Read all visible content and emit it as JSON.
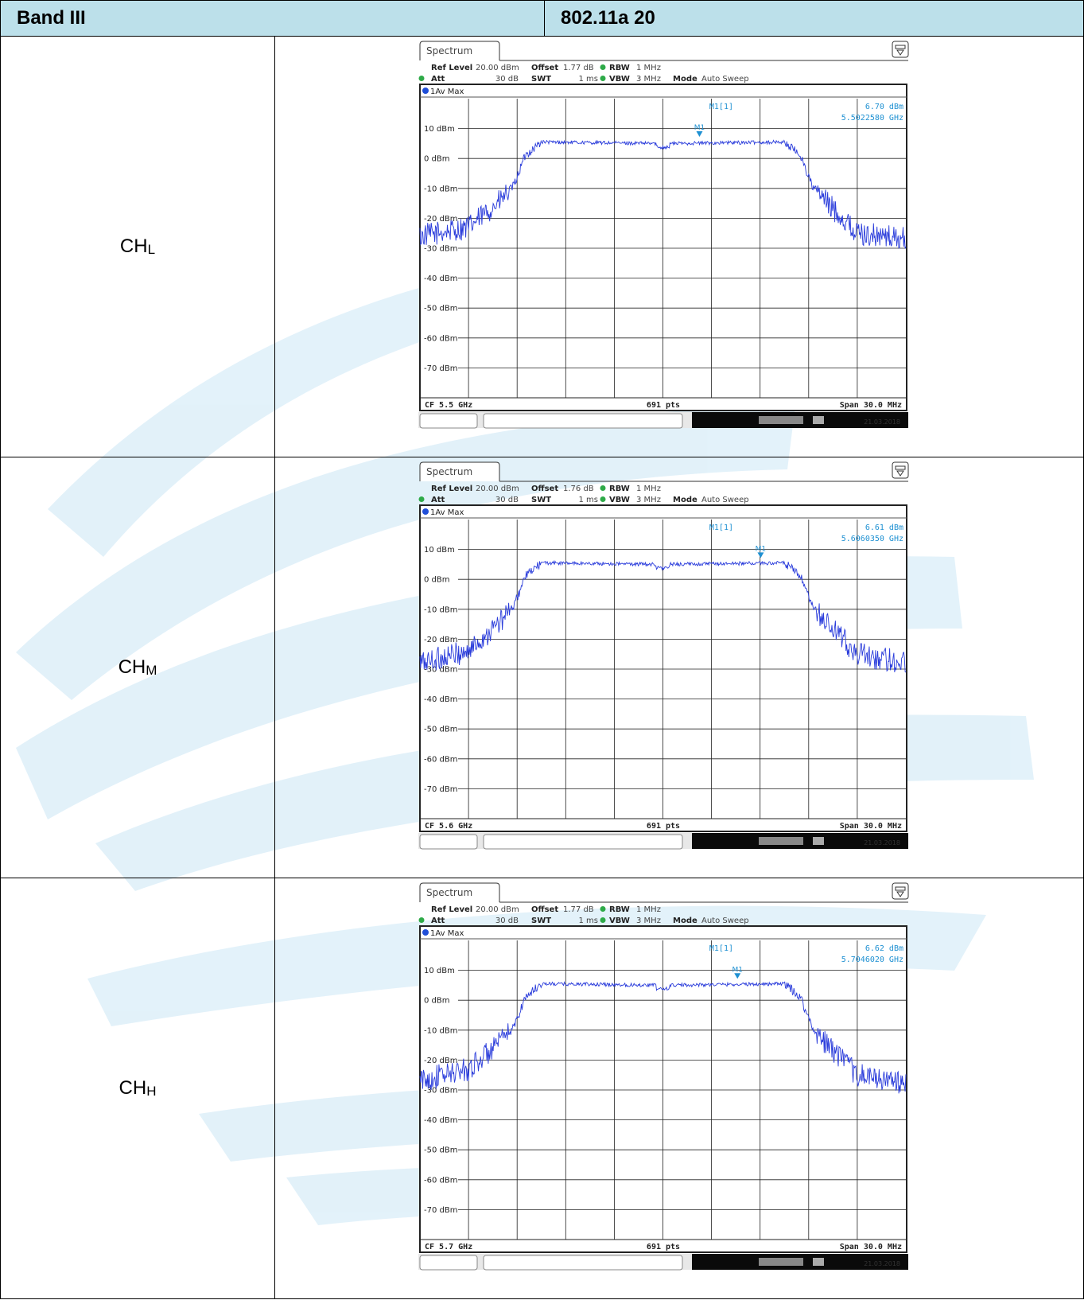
{
  "header": {
    "band": "Band III",
    "mode": "802.11a 20"
  },
  "colors": {
    "header_bg": "#b6dde8",
    "trace": "#2a3cdb",
    "marker": "#1e90d2",
    "watermark": "#d6ebf7"
  },
  "chart_data": [
    {
      "type": "line",
      "channel": "CH",
      "channel_sub": "L",
      "tab": "Spectrum",
      "ref_level_label": "Ref Level",
      "ref_level": "20.00 dBm",
      "att_label": "Att",
      "att": "30 dB",
      "offset_label": "Offset",
      "offset": "1.77 dB",
      "swt_label": "SWT",
      "swt": "1 ms",
      "rbw_label": "RBW",
      "rbw": "1 MHz",
      "vbw_label": "VBW",
      "vbw": "3 MHz",
      "mode_label": "Mode",
      "mode": "Auto Sweep",
      "trace_label": "1Av Max",
      "marker_name": "M1[1]",
      "marker_short": "M1",
      "marker_level": "6.70 dBm",
      "marker_freq": "5.5022580 GHz",
      "marker_x_mhz": 5502.258,
      "marker_y_dbm": 6.7,
      "center_label": "CF 5.5 GHz",
      "pts_label": "691 pts",
      "span_label": "Span 30.0 MHz",
      "date": "21.03.2018",
      "center_mhz": 5500,
      "span_mhz": 30,
      "ylim": [
        -80,
        20
      ],
      "yticks": [
        10,
        0,
        -10,
        -20,
        -30,
        -40,
        -50,
        -60,
        -70
      ],
      "ytick_labels": [
        "10 dBm",
        "0 dBm",
        "-10 dBm",
        "-20 dBm",
        "-30 dBm",
        "-40 dBm",
        "-50 dBm",
        "-60 dBm",
        "-70 dBm"
      ],
      "envelope_offset_mhz": [
        -15,
        -12,
        -10,
        -9.2,
        -8.5,
        -7.5,
        0,
        7.5,
        8.5,
        9.2,
        10,
        12,
        15
      ],
      "envelope_dbm": [
        -26,
        -23,
        -14,
        -9,
        1,
        5.5,
        5,
        5.5,
        1,
        -9,
        -14,
        -25,
        -27
      ]
    },
    {
      "type": "line",
      "channel": "CH",
      "channel_sub": "M",
      "tab": "Spectrum",
      "ref_level_label": "Ref Level",
      "ref_level": "20.00 dBm",
      "att_label": "Att",
      "att": "30 dB",
      "offset_label": "Offset",
      "offset": "1.76 dB",
      "swt_label": "SWT",
      "swt": "1 ms",
      "rbw_label": "RBW",
      "rbw": "1 MHz",
      "vbw_label": "VBW",
      "vbw": "3 MHz",
      "mode_label": "Mode",
      "mode": "Auto Sweep",
      "trace_label": "1Av Max",
      "marker_name": "M1[1]",
      "marker_short": "M1",
      "marker_level": "6.61 dBm",
      "marker_freq": "5.6060350 GHz",
      "marker_x_mhz": 5606.035,
      "marker_y_dbm": 6.61,
      "center_label": "CF 5.6 GHz",
      "pts_label": "691 pts",
      "span_label": "Span 30.0 MHz",
      "date": "21.03.2018",
      "center_mhz": 5600,
      "span_mhz": 30,
      "ylim": [
        -80,
        20
      ],
      "yticks": [
        10,
        0,
        -10,
        -20,
        -30,
        -40,
        -50,
        -60,
        -70
      ],
      "ytick_labels": [
        "10 dBm",
        "0 dBm",
        "-10 dBm",
        "-20 dBm",
        "-30 dBm",
        "-40 dBm",
        "-50 dBm",
        "-60 dBm",
        "-70 dBm"
      ],
      "envelope_offset_mhz": [
        -15,
        -12,
        -10,
        -9.2,
        -8.5,
        -7.5,
        0,
        7.5,
        8.5,
        9.2,
        10,
        12,
        15
      ],
      "envelope_dbm": [
        -28,
        -24,
        -14,
        -9,
        1,
        5.5,
        5,
        5.5,
        1,
        -9,
        -14,
        -25,
        -28
      ]
    },
    {
      "type": "line",
      "channel": "CH",
      "channel_sub": "H",
      "tab": "Spectrum",
      "ref_level_label": "Ref Level",
      "ref_level": "20.00 dBm",
      "att_label": "Att",
      "att": "30 dB",
      "offset_label": "Offset",
      "offset": "1.77 dB",
      "swt_label": "SWT",
      "swt": "1 ms",
      "rbw_label": "RBW",
      "rbw": "1 MHz",
      "vbw_label": "VBW",
      "vbw": "3 MHz",
      "mode_label": "Mode",
      "mode": "Auto Sweep",
      "trace_label": "1Av Max",
      "marker_name": "M1[1]",
      "marker_short": "M1",
      "marker_level": "6.62 dBm",
      "marker_freq": "5.7046020 GHz",
      "marker_x_mhz": 5704.602,
      "marker_y_dbm": 6.62,
      "center_label": "CF 5.7 GHz",
      "pts_label": "691 pts",
      "span_label": "Span 30.0 MHz",
      "date": "21.03.2018",
      "center_mhz": 5700,
      "span_mhz": 30,
      "ylim": [
        -80,
        20
      ],
      "yticks": [
        10,
        0,
        -10,
        -20,
        -30,
        -40,
        -50,
        -60,
        -70
      ],
      "ytick_labels": [
        "10 dBm",
        "0 dBm",
        "-10 dBm",
        "-20 dBm",
        "-30 dBm",
        "-40 dBm",
        "-50 dBm",
        "-60 dBm",
        "-70 dBm"
      ],
      "envelope_offset_mhz": [
        -15,
        -12,
        -10,
        -9.2,
        -8.5,
        -7.5,
        0,
        7.5,
        8.5,
        9.2,
        10,
        12,
        15
      ],
      "envelope_dbm": [
        -27,
        -23,
        -14,
        -9,
        1,
        5.5,
        5,
        5.5,
        1,
        -9,
        -14,
        -25,
        -28
      ]
    }
  ]
}
